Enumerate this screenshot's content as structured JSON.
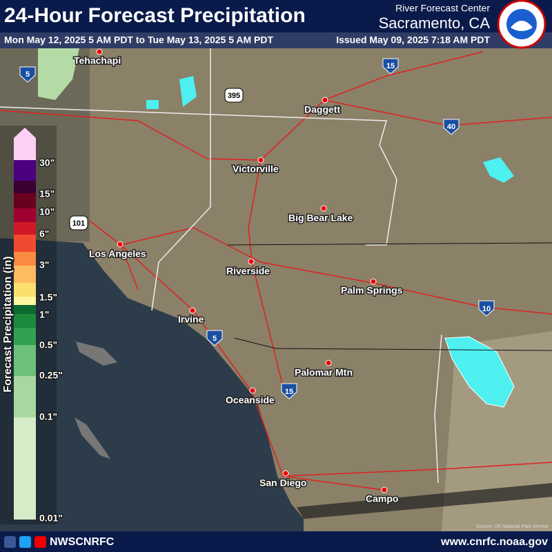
{
  "header": {
    "title": "24-Hour Forecast Precipitation",
    "center": "River Forecast Center",
    "location": "Sacramento, CA",
    "period": "Mon May 12, 2025 5 AM PDT to Tue May 13, 2025 5 AM PDT",
    "issued": "Issued May 09, 2025 7:18 AM PDT"
  },
  "legend": {
    "title": "Forecast Precipitation (in)",
    "labels": [
      "30\"",
      "15\"",
      "10\"",
      "6\"",
      "3\"",
      "1.5\"",
      "1\"",
      "0.5\"",
      "0.25\"",
      "0.1\"",
      "0.01\""
    ]
  },
  "cities": [
    "Tehachapi",
    "Daggett",
    "Victorville",
    "Big Bear Lake",
    "Los Angeles",
    "Riverside",
    "Palm Springs",
    "Irvine",
    "Palomar Mtn",
    "Oceanside",
    "San Diego",
    "Campo"
  ],
  "highways": [
    "5",
    "15",
    "395",
    "40",
    "101",
    "10",
    "5",
    "15"
  ],
  "source": "Source: US National Park Service",
  "footer": {
    "social": "NWSCNRFC",
    "url": "www.cnrfc.noaa.gov"
  }
}
